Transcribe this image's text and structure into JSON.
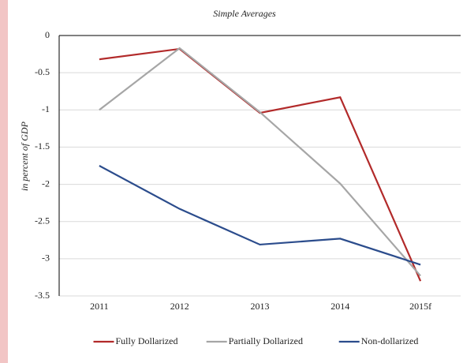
{
  "chart_data": {
    "type": "line",
    "title": "Simple Averages",
    "y_label": "in percent of GDP",
    "categories": [
      "2011",
      "2012",
      "2013",
      "2014",
      "2015f"
    ],
    "series": [
      {
        "name": "Fully Dollarized",
        "color": "#b22a2a",
        "values": [
          -0.32,
          -0.18,
          -1.04,
          -0.83,
          -3.3
        ]
      },
      {
        "name": "Partially Dollarized",
        "color": "#a6a6a6",
        "values": [
          -1.0,
          -0.17,
          -1.03,
          -1.99,
          -3.23
        ]
      },
      {
        "name": "Non-dollarized",
        "color": "#2b4c8c",
        "values": [
          -1.75,
          -2.33,
          -2.81,
          -2.73,
          -3.08
        ]
      }
    ],
    "ylim": [
      -3.5,
      0
    ],
    "yticks": [
      0,
      -0.5,
      -1,
      -1.5,
      -2,
      -2.5,
      -3,
      -3.5
    ],
    "grid": true
  }
}
